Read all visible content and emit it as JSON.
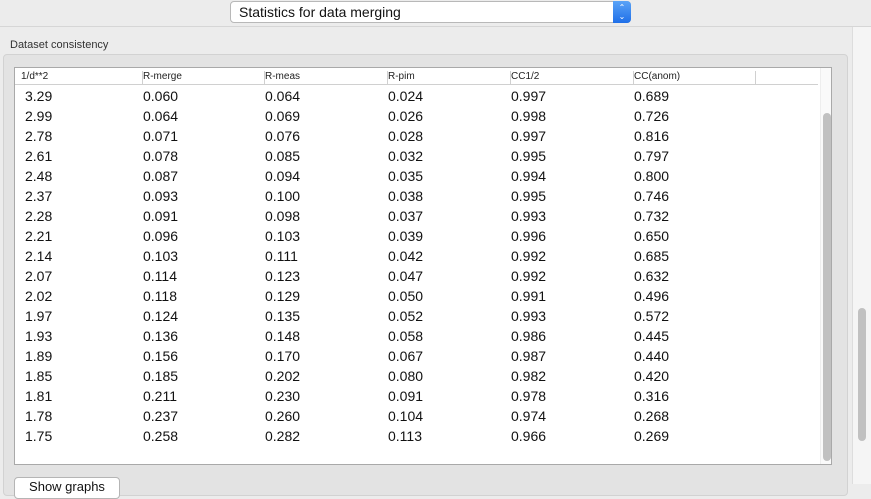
{
  "header": {
    "select_value": "Statistics for data merging"
  },
  "group": {
    "title": "Dataset consistency"
  },
  "table": {
    "columns": [
      "1/d**2",
      "R-merge",
      "R-meas",
      "R-pim",
      "CC1/2",
      "CC(anom)"
    ],
    "rows": [
      [
        "3.29",
        "0.060",
        "0.064",
        "0.024",
        "0.997",
        "0.689"
      ],
      [
        "2.99",
        "0.064",
        "0.069",
        "0.026",
        "0.998",
        "0.726"
      ],
      [
        "2.78",
        "0.071",
        "0.076",
        "0.028",
        "0.997",
        "0.816"
      ],
      [
        "2.61",
        "0.078",
        "0.085",
        "0.032",
        "0.995",
        "0.797"
      ],
      [
        "2.48",
        "0.087",
        "0.094",
        "0.035",
        "0.994",
        "0.800"
      ],
      [
        "2.37",
        "0.093",
        "0.100",
        "0.038",
        "0.995",
        "0.746"
      ],
      [
        "2.28",
        "0.091",
        "0.098",
        "0.037",
        "0.993",
        "0.732"
      ],
      [
        "2.21",
        "0.096",
        "0.103",
        "0.039",
        "0.996",
        "0.650"
      ],
      [
        "2.14",
        "0.103",
        "0.111",
        "0.042",
        "0.992",
        "0.685"
      ],
      [
        "2.07",
        "0.114",
        "0.123",
        "0.047",
        "0.992",
        "0.632"
      ],
      [
        "2.02",
        "0.118",
        "0.129",
        "0.050",
        "0.991",
        "0.496"
      ],
      [
        "1.97",
        "0.124",
        "0.135",
        "0.052",
        "0.993",
        "0.572"
      ],
      [
        "1.93",
        "0.136",
        "0.148",
        "0.058",
        "0.986",
        "0.445"
      ],
      [
        "1.89",
        "0.156",
        "0.170",
        "0.067",
        "0.987",
        "0.440"
      ],
      [
        "1.85",
        "0.185",
        "0.202",
        "0.080",
        "0.982",
        "0.420"
      ],
      [
        "1.81",
        "0.211",
        "0.230",
        "0.091",
        "0.978",
        "0.316"
      ],
      [
        "1.78",
        "0.237",
        "0.260",
        "0.104",
        "0.974",
        "0.268"
      ],
      [
        "1.75",
        "0.258",
        "0.282",
        "0.113",
        "0.966",
        "0.269"
      ]
    ]
  },
  "buttons": {
    "show_graphs": "Show graphs"
  },
  "colors": {
    "accent": "#1f6fe8"
  }
}
